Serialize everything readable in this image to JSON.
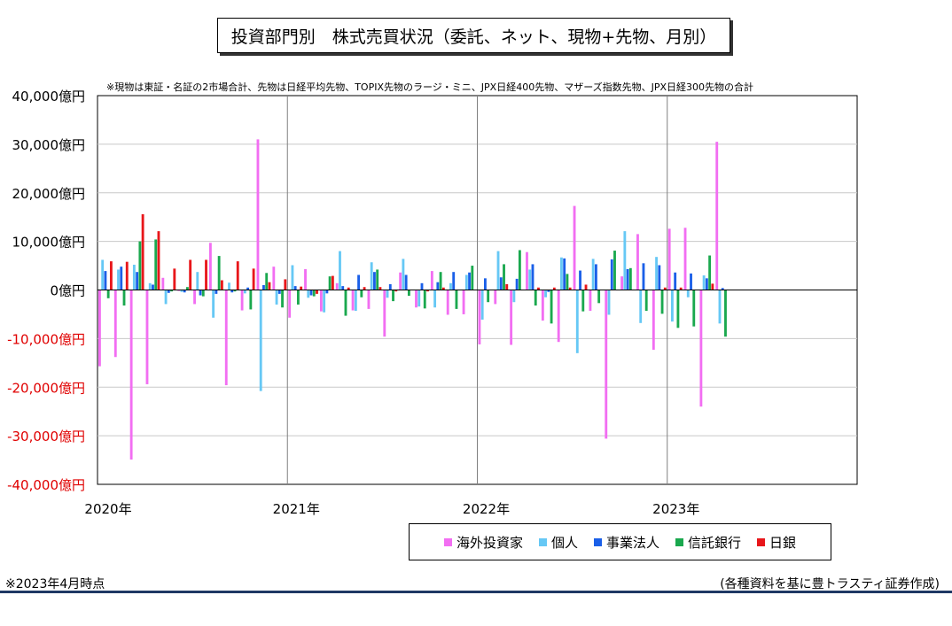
{
  "chart_data": {
    "type": "bar",
    "title": "投資部門別　株式売買状況（委託、ネット、現物+先物、月別）",
    "note": "※現物は東証・名証の2市場合計、先物は日経平均先物、TOPIX先物のラージ・ミニ、JPX日経400先物、マザーズ指数先物、JPX日経300先物の合計",
    "ylim": [
      -40000,
      40000
    ],
    "y_ticks": [
      "40,000億円",
      "30,000億円",
      "20,000億円",
      "10,000億円",
      "0億円",
      "-10,000億円",
      "-20,000億円",
      "-30,000億円",
      "-40,000億円"
    ],
    "x_tick_labels": [
      "2020年",
      "2021年",
      "2022年",
      "2023年"
    ],
    "grid": true,
    "legend_position": "bottom-right",
    "categories": [
      "2020-01",
      "2020-02",
      "2020-03",
      "2020-04",
      "2020-05",
      "2020-06",
      "2020-07",
      "2020-08",
      "2020-09",
      "2020-10",
      "2020-11",
      "2020-12",
      "2021-01",
      "2021-02",
      "2021-03",
      "2021-04",
      "2021-05",
      "2021-06",
      "2021-07",
      "2021-08",
      "2021-09",
      "2021-10",
      "2021-11",
      "2021-12",
      "2022-01",
      "2022-02",
      "2022-03",
      "2022-04",
      "2022-05",
      "2022-06",
      "2022-07",
      "2022-08",
      "2022-09",
      "2022-10",
      "2022-11",
      "2022-12",
      "2023-01",
      "2023-02",
      "2023-03",
      "2023-04"
    ],
    "series": [
      {
        "name": "海外投資家",
        "color": "#f26ef2",
        "values": [
          -15700,
          -13800,
          -34900,
          -19400,
          2500,
          -200,
          -2900,
          9700,
          -19600,
          -4200,
          31000,
          4800,
          -5700,
          4300,
          -4400,
          1400,
          -4200,
          -3900,
          -9600,
          3600,
          -3600,
          3900,
          -5100,
          -5000,
          -11200,
          -2900,
          -11300,
          7800,
          -6300,
          -10700,
          17300,
          -4300,
          -30600,
          2800,
          11500,
          -12300,
          12600,
          12800,
          -24000,
          30500
        ]
      },
      {
        "name": "個人",
        "color": "#66c8f5",
        "values": [
          6200,
          4200,
          5200,
          1400,
          -2900,
          -400,
          3700,
          -5700,
          1500,
          -700,
          -20800,
          -3000,
          5100,
          -1600,
          -4600,
          8000,
          -4300,
          5700,
          -1600,
          6400,
          -3400,
          -3600,
          1400,
          3100,
          -6100,
          8000,
          -2500,
          4200,
          -1500,
          6700,
          -13000,
          6400,
          -5100,
          12100,
          -6800,
          6800,
          -6500,
          -1500,
          3000,
          -6900
        ]
      },
      {
        "name": "事業法人",
        "color": "#1a5fe8",
        "values": [
          3900,
          4800,
          3700,
          1100,
          -600,
          -500,
          -1100,
          -800,
          -500,
          500,
          1000,
          -800,
          800,
          -1100,
          -700,
          800,
          3100,
          3700,
          1200,
          3100,
          1400,
          1600,
          3700,
          3600,
          2400,
          2600,
          2300,
          5300,
          -400,
          6500,
          4000,
          5300,
          6300,
          4300,
          5500,
          5100,
          3600,
          3400,
          2400,
          400
        ]
      },
      {
        "name": "信託銀行",
        "color": "#1aa84e",
        "values": [
          -1700,
          -3200,
          10000,
          10400,
          -300,
          600,
          -1300,
          7000,
          -300,
          -4000,
          3500,
          -3600,
          -3000,
          -1300,
          2800,
          -5300,
          -1500,
          4200,
          -2300,
          -1200,
          -3800,
          3700,
          -3900,
          5000,
          -2500,
          5300,
          8200,
          -3200,
          -6900,
          3300,
          -4400,
          -2700,
          8100,
          4500,
          -4300,
          -4900,
          -7800,
          -7500,
          7100,
          -9600
        ]
      },
      {
        "name": "日銀",
        "color": "#e8161a",
        "values": [
          5900,
          5800,
          15600,
          12100,
          4400,
          6200,
          6200,
          2000,
          5900,
          4400,
          1600,
          2200,
          700,
          -800,
          2900,
          500,
          600,
          600,
          -300,
          0,
          -300,
          500,
          0,
          0,
          0,
          1200,
          0,
          500,
          500,
          500,
          1100,
          0,
          0,
          0,
          0,
          500,
          500,
          0,
          1300,
          0
        ]
      }
    ]
  },
  "footer": {
    "left": "※2023年4月時点",
    "right": "(各種資料を基に豊トラスティ証券作成)"
  }
}
